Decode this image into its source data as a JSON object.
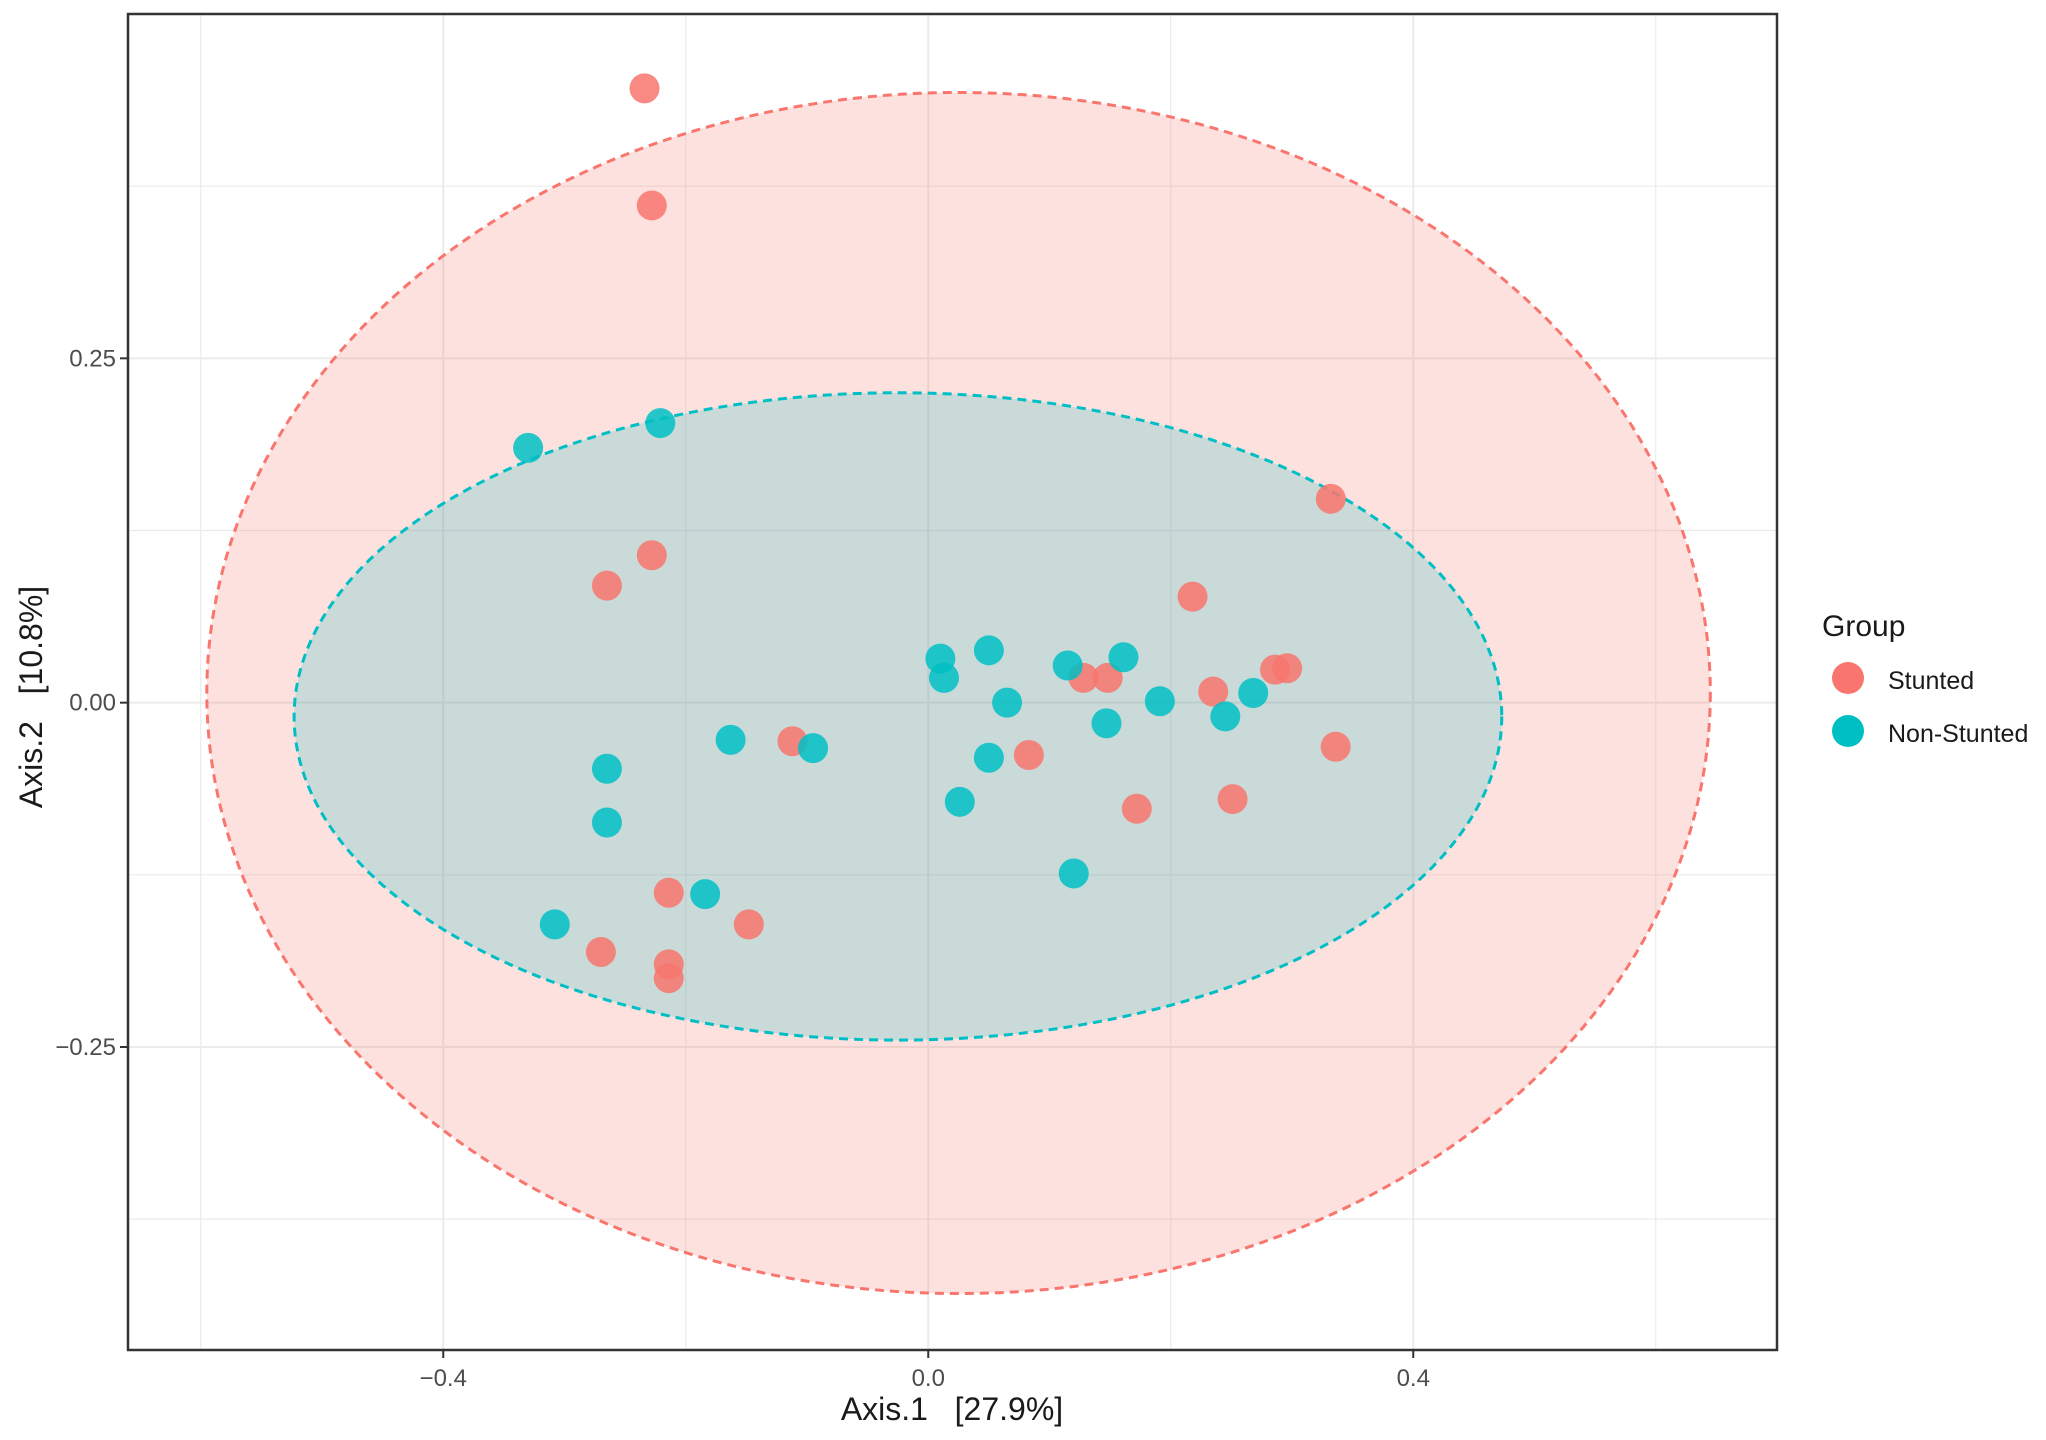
{
  "chart_data": {
    "type": "scatter",
    "xlabel": "Axis.1   [27.9%]",
    "ylabel": "Axis.2   [10.8%]",
    "xlim": [
      -0.66,
      0.7
    ],
    "ylim": [
      -0.47,
      0.5
    ],
    "x_ticks": [
      -0.4,
      0.0,
      0.4
    ],
    "x_tick_labels": [
      "−0.4",
      "0.0",
      "0.4"
    ],
    "y_ticks": [
      -0.25,
      0.0,
      0.25
    ],
    "y_tick_labels": [
      "−0.25",
      "0.00",
      "0.25"
    ],
    "grid": true,
    "legend": {
      "title": "Group",
      "position": "right",
      "entries": [
        "Stunted",
        "Non-Stunted"
      ]
    },
    "series": [
      {
        "name": "Stunted",
        "color": "#F8766D",
        "points": [
          {
            "x": -0.234,
            "y": 0.446
          },
          {
            "x": -0.228,
            "y": 0.361
          },
          {
            "x": -0.228,
            "y": 0.107
          },
          {
            "x": -0.265,
            "y": 0.085
          },
          {
            "x": -0.112,
            "y": -0.028
          },
          {
            "x": 0.083,
            "y": -0.038
          },
          {
            "x": -0.214,
            "y": -0.138
          },
          {
            "x": -0.148,
            "y": -0.161
          },
          {
            "x": -0.27,
            "y": -0.181
          },
          {
            "x": -0.214,
            "y": -0.19
          },
          {
            "x": -0.214,
            "y": -0.2
          },
          {
            "x": 0.128,
            "y": 0.018
          },
          {
            "x": 0.148,
            "y": 0.018
          },
          {
            "x": 0.235,
            "y": 0.008
          },
          {
            "x": 0.218,
            "y": 0.077
          },
          {
            "x": 0.286,
            "y": 0.024
          },
          {
            "x": 0.296,
            "y": 0.025
          },
          {
            "x": 0.332,
            "y": 0.148
          },
          {
            "x": 0.336,
            "y": -0.032
          },
          {
            "x": 0.172,
            "y": -0.077
          },
          {
            "x": 0.251,
            "y": -0.07
          }
        ]
      },
      {
        "name": "Non-Stunted",
        "color": "#00BFC4",
        "points": [
          {
            "x": -0.33,
            "y": 0.185
          },
          {
            "x": -0.221,
            "y": 0.203
          },
          {
            "x": -0.265,
            "y": -0.048
          },
          {
            "x": -0.265,
            "y": -0.087
          },
          {
            "x": -0.163,
            "y": -0.027
          },
          {
            "x": -0.095,
            "y": -0.033
          },
          {
            "x": -0.308,
            "y": -0.161
          },
          {
            "x": -0.184,
            "y": -0.139
          },
          {
            "x": 0.01,
            "y": 0.032
          },
          {
            "x": 0.013,
            "y": 0.018
          },
          {
            "x": 0.05,
            "y": 0.038
          },
          {
            "x": 0.065,
            "y": 0.0
          },
          {
            "x": 0.05,
            "y": -0.04
          },
          {
            "x": 0.026,
            "y": -0.072
          },
          {
            "x": 0.115,
            "y": 0.027
          },
          {
            "x": 0.161,
            "y": 0.033
          },
          {
            "x": 0.147,
            "y": -0.015
          },
          {
            "x": 0.191,
            "y": 0.001
          },
          {
            "x": 0.245,
            "y": -0.01
          },
          {
            "x": 0.268,
            "y": 0.007
          },
          {
            "x": 0.12,
            "y": -0.124
          }
        ]
      }
    ],
    "ellipses": [
      {
        "group": "Stunted",
        "color": "#F8766D",
        "fill_opacity": 0.22,
        "center": [
          0.025,
          0.007
        ],
        "rx": 0.62,
        "ry": 0.436
      },
      {
        "group": "Non-Stunted",
        "color": "#00BFC4",
        "fill_opacity": 0.2,
        "center": [
          -0.025,
          -0.01
        ],
        "rx": 0.498,
        "ry": 0.235
      }
    ]
  }
}
